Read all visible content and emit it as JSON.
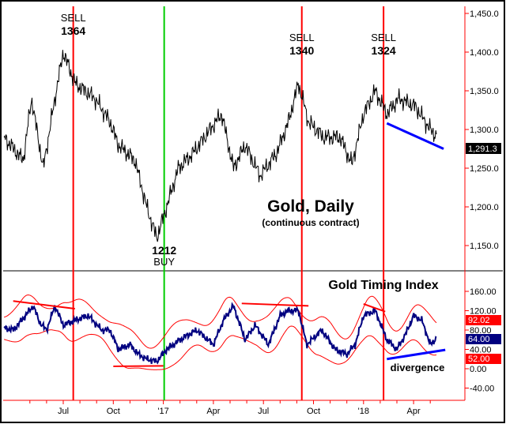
{
  "chart_data": [
    {
      "type": "line",
      "title": "Gold, Daily",
      "subtitle": "(continuous contract)",
      "ylim": [
        1130,
        1465
      ],
      "y_ticks": [
        "1,450.0",
        "1,400.0",
        "1,350.0",
        "1,300.0",
        "1,250.0",
        "1,200.0",
        "1,150.0"
      ],
      "y_tick_values": [
        1450,
        1400,
        1350,
        1300,
        1250,
        1200,
        1150
      ],
      "last_value_label": "1,291.3",
      "x_unit": "months since Jan 2016",
      "series": [
        {
          "name": "Gold",
          "color": "#000000",
          "points": [
            [
              2.45,
              1290
            ],
            [
              3.6,
              1260
            ],
            [
              4.1,
              1340
            ],
            [
              4.8,
              1250
            ],
            [
              5.5,
              1340
            ],
            [
              6,
              1400
            ],
            [
              6.7,
              1360
            ],
            [
              7.9,
              1340
            ],
            [
              8.8,
              1310
            ],
            [
              9.3,
              1280
            ],
            [
              10.3,
              1260
            ],
            [
              11,
              1200
            ],
            [
              11.6,
              1160
            ],
            [
              12.2,
              1200
            ],
            [
              12.9,
              1250
            ],
            [
              13.8,
              1270
            ],
            [
              14.8,
              1300
            ],
            [
              15.5,
              1320
            ],
            [
              16.2,
              1250
            ],
            [
              16.9,
              1280
            ],
            [
              17.8,
              1240
            ],
            [
              18.8,
              1270
            ],
            [
              19.5,
              1310
            ],
            [
              20.1,
              1360
            ],
            [
              20.7,
              1310
            ],
            [
              21.6,
              1290
            ],
            [
              22.6,
              1290
            ],
            [
              23.3,
              1255
            ],
            [
              24,
              1320
            ],
            [
              24.7,
              1350
            ],
            [
              25.4,
              1320
            ],
            [
              26.1,
              1340
            ],
            [
              27.1,
              1330
            ],
            [
              28,
              1300
            ],
            [
              28.4,
              1291
            ]
          ]
        }
      ],
      "annotations": [
        {
          "label1": "SELL",
          "label2": "1364",
          "month": 6.6,
          "kind": "sell"
        },
        {
          "label1": "SELL",
          "label2": "1340",
          "month": 20.3,
          "kind": "sell"
        },
        {
          "label1": "SELL",
          "label2": "1324",
          "month": 25.2,
          "kind": "sell"
        },
        {
          "label1": "1212",
          "label2": "BUY",
          "month": 12.05,
          "kind": "buy"
        }
      ],
      "trendline": {
        "color": "#0000ff",
        "from": [
          25.4,
          1308
        ],
        "to": [
          28.8,
          1275
        ]
      }
    },
    {
      "type": "line",
      "title": "Gold Timing Index",
      "ylim": [
        -60,
        200
      ],
      "y_ticks": [
        "160.00",
        "120.00",
        "80.00",
        "40.00",
        "0.00",
        "-40.00"
      ],
      "y_tick_values": [
        160,
        120,
        80,
        40,
        0,
        -40
      ],
      "value_labels": {
        "upper_band": "92.02",
        "index": "64.00",
        "lower_band": "52.00"
      },
      "annotation": "divergence",
      "series": [
        {
          "name": "Gold Timing Index",
          "color": "#000080",
          "points": [
            [
              2.45,
              85
            ],
            [
              3,
              80
            ],
            [
              3.5,
              100
            ],
            [
              4.2,
              130
            ],
            [
              4.6,
              95
            ],
            [
              5,
              80
            ],
            [
              5.5,
              130
            ],
            [
              6,
              90
            ],
            [
              6.7,
              100
            ],
            [
              7.5,
              110
            ],
            [
              8.3,
              80
            ],
            [
              8.8,
              80
            ],
            [
              9.3,
              40
            ],
            [
              10,
              50
            ],
            [
              10.5,
              30
            ],
            [
              11,
              20
            ],
            [
              11.6,
              15
            ],
            [
              12.2,
              40
            ],
            [
              13,
              60
            ],
            [
              14,
              80
            ],
            [
              14.5,
              65
            ],
            [
              15,
              50
            ],
            [
              15.6,
              100
            ],
            [
              16.2,
              130
            ],
            [
              16.9,
              60
            ],
            [
              17.5,
              90
            ],
            [
              18.3,
              50
            ],
            [
              19,
              110
            ],
            [
              19.5,
              120
            ],
            [
              20.1,
              120
            ],
            [
              20.6,
              50
            ],
            [
              21.5,
              80
            ],
            [
              22.3,
              40
            ],
            [
              23,
              30
            ],
            [
              23.5,
              50
            ],
            [
              24,
              110
            ],
            [
              24.7,
              120
            ],
            [
              25.4,
              60
            ],
            [
              26,
              40
            ],
            [
              26.5,
              70
            ],
            [
              27,
              110
            ],
            [
              27.5,
              100
            ],
            [
              28,
              50
            ],
            [
              28.4,
              64
            ]
          ]
        },
        {
          "name": "Upper band",
          "color": "#ff0000"
        },
        {
          "name": "Lower band",
          "color": "#ff0000"
        }
      ],
      "trendlines": [
        {
          "color": "#ff0000",
          "from": [
            3.0,
            140
          ],
          "to": [
            6.7,
            124
          ]
        },
        {
          "color": "#ff0000",
          "from": [
            9.0,
            5
          ],
          "to": [
            12.0,
            6
          ]
        },
        {
          "color": "#ff0000",
          "from": [
            16.7,
            135
          ],
          "to": [
            20.7,
            130
          ]
        },
        {
          "color": "#ff0000",
          "from": [
            24.0,
            134
          ],
          "to": [
            25.3,
            118
          ]
        },
        {
          "color": "#0000ff",
          "from": [
            25.4,
            20
          ],
          "to": [
            28.9,
            39
          ]
        }
      ]
    }
  ],
  "x_axis": {
    "ticks": [
      {
        "label": "Jul",
        "month": 6
      },
      {
        "label": "Oct",
        "month": 9
      },
      {
        "label": "'17",
        "month": 12
      },
      {
        "label": "Apr",
        "month": 15
      },
      {
        "label": "Jul",
        "month": 18
      },
      {
        "label": "Oct",
        "month": 21
      },
      {
        "label": "'18",
        "month": 24
      },
      {
        "label": "Apr",
        "month": 27
      }
    ]
  },
  "signal_lines": [
    {
      "month": 6.6,
      "color": "#ff0000"
    },
    {
      "month": 12.05,
      "color": "#00cc00"
    },
    {
      "month": 20.3,
      "color": "#ff0000"
    },
    {
      "month": 25.2,
      "color": "#ff0000"
    }
  ]
}
